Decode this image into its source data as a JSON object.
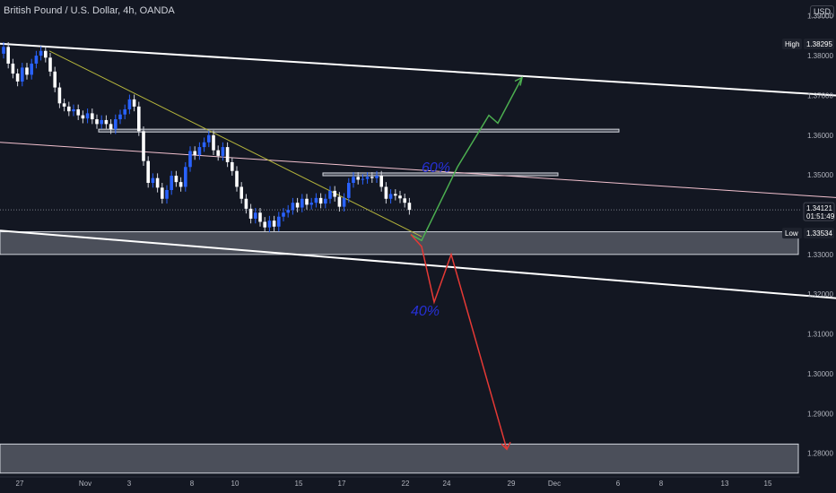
{
  "header": {
    "title": "British Pound / U.S. Dollar, 4h, OANDA",
    "currency": "USD"
  },
  "chart_data": {
    "type": "candlestick",
    "symbol": "GBPUSD",
    "interval": "4h",
    "ylim": [
      1.2745,
      1.394
    ],
    "y_ticks": [
      "1.39000",
      "1.38000",
      "1.37000",
      "1.36000",
      "1.35000",
      "1.34000",
      "1.33000",
      "1.32000",
      "1.31000",
      "1.30000",
      "1.29000",
      "1.28000"
    ],
    "x_ticks": [
      "27",
      "Nov",
      "3",
      "8",
      "10",
      "15",
      "17",
      "22",
      "24",
      "29",
      "Dec",
      "6",
      "8",
      "13",
      "15"
    ],
    "high_label": "High",
    "high_value": "1.38295",
    "low_label": "Low",
    "low_value": "1.33534",
    "current_price": "1.34121",
    "countdown": "01:51:49",
    "up_probability": "60%",
    "down_probability": "40%",
    "closes": [
      1.3822,
      1.378,
      1.3755,
      1.3735,
      1.377,
      1.3752,
      1.378,
      1.38,
      1.3812,
      1.3795,
      1.376,
      1.372,
      1.368,
      1.3672,
      1.366,
      1.3665,
      1.365,
      1.3642,
      1.3655,
      1.364,
      1.3628,
      1.3638,
      1.3628,
      1.3615,
      1.364,
      1.3652,
      1.3665,
      1.369,
      1.3672,
      1.361,
      1.3535,
      1.348,
      1.3492,
      1.3468,
      1.344,
      1.3462,
      1.3498,
      1.3482,
      1.347,
      1.352,
      1.356,
      1.355,
      1.357,
      1.3582,
      1.36,
      1.3562,
      1.3548,
      1.357,
      1.3532,
      1.351,
      1.347,
      1.344,
      1.3415,
      1.339,
      1.3405,
      1.3382,
      1.3368,
      1.3385,
      1.337,
      1.3395,
      1.3405,
      1.3412,
      1.343,
      1.3418,
      1.344,
      1.3425,
      1.343,
      1.3442,
      1.3428,
      1.344,
      1.346,
      1.3445,
      1.342,
      1.3442,
      1.348,
      1.3495,
      1.3488,
      1.349,
      1.3495,
      1.3492,
      1.3498,
      1.347,
      1.344,
      1.3452,
      1.3448,
      1.3441,
      1.343,
      1.3412
    ],
    "levels": {
      "channel_upper": [
        [
          0,
          1.383
        ],
        [
          932,
          1.37
        ]
      ],
      "channel_lower": [
        [
          0,
          1.336
        ],
        [
          932,
          1.319
        ]
      ],
      "mid_line": [
        [
          0,
          1.3582
        ],
        [
          932,
          1.3443
        ]
      ],
      "down_trend": [
        [
          55,
          1.3812
        ],
        [
          470,
          1.3345
        ]
      ],
      "zones": [
        {
          "x": [
            110,
            690
          ],
          "y": [
            1.3615,
            1.3608
          ]
        },
        {
          "x": [
            360,
            622
          ],
          "y": [
            1.3505,
            1.3498
          ]
        },
        {
          "x": [
            0,
            890
          ],
          "y": [
            1.3357,
            1.33
          ]
        },
        {
          "x": [
            0,
            890
          ],
          "y": [
            1.2823,
            1.275
          ]
        }
      ]
    },
    "projection_up": [
      [
        458,
        1.335
      ],
      [
        470,
        1.3335
      ],
      [
        510,
        1.352
      ],
      [
        545,
        1.365
      ],
      [
        555,
        1.363
      ],
      [
        582,
        1.3745
      ]
    ],
    "projection_down": [
      [
        458,
        1.335
      ],
      [
        470,
        1.332
      ],
      [
        484,
        1.318
      ],
      [
        503,
        1.33
      ],
      [
        565,
        1.281
      ]
    ]
  },
  "colors": {
    "background": "#131722",
    "bull": "#2962ff",
    "bear": "#ffffff",
    "up_path": "#4caf50",
    "down_path": "#e53935",
    "trendline": "#b5b53c",
    "mid_line": "#f3c2cf",
    "prob_text": "#2630d6"
  }
}
